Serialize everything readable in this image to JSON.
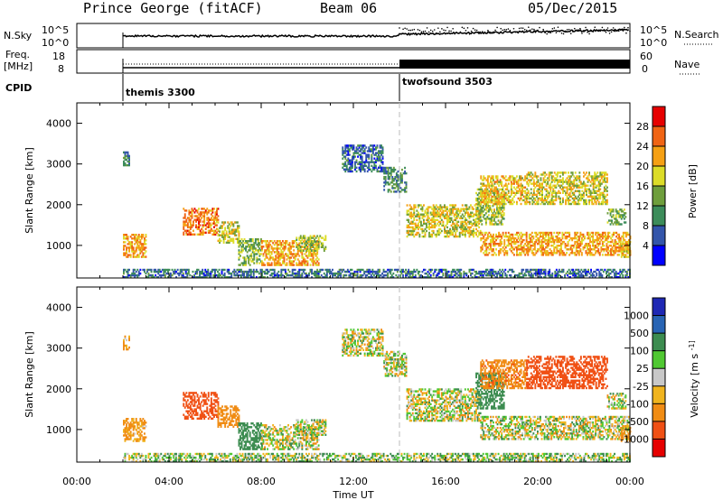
{
  "header": {
    "station": "Prince George (fitACF)",
    "beam": "Beam 06",
    "date": "05/Dec/2015"
  },
  "status_panels": {
    "nsky_label": "N.Sky",
    "nsearch_label": "N.Search",
    "nsky_ticks": [
      "10^5",
      "10^0"
    ],
    "nsky_right_ticks": [
      "10^5",
      "10^0"
    ],
    "freq_label": "Freq.",
    "freq_unit": "[MHz]",
    "freq_ticks": [
      "18",
      "8"
    ],
    "nave_label": "Nave",
    "nave_ticks": [
      "60",
      "0"
    ],
    "cpid_label": "CPID",
    "cpid_modes": [
      {
        "name": "themis 3300",
        "start_hour": 2.0
      },
      {
        "name": "twofsound 3503",
        "start_hour": 14.0
      }
    ]
  },
  "chart_data": [
    {
      "type": "heatmap",
      "quantity": "Power",
      "colorbar_label": "Power [dB]",
      "colorbar_ticks": [
        "28",
        "24",
        "20",
        "16",
        "12",
        "8",
        "4"
      ],
      "colorbar_colors": [
        "#0000ff",
        "#3355aa",
        "#3c8c5a",
        "#6e9e3c",
        "#dcdc28",
        "#f5a014",
        "#f06414",
        "#e60000"
      ],
      "xlabel": "Time UT",
      "ylabel": "Slant Range [km]",
      "xlim": [
        0,
        24
      ],
      "ylim": [
        200,
        4500
      ],
      "y_ticks": [
        1000,
        2000,
        3000,
        4000
      ],
      "x_tick_labels": [
        "00:00",
        "04:00",
        "08:00",
        "12:00",
        "16:00",
        "20:00",
        "00:00"
      ],
      "x_ticks": [
        0,
        4,
        8,
        12,
        16,
        20,
        24
      ],
      "mode_change_hour": 14.0
    },
    {
      "type": "heatmap",
      "quantity": "Velocity",
      "colorbar_label": "Velocity [m s^-1]",
      "colorbar_ticks": [
        "1000",
        "500",
        "100",
        "25",
        "-25",
        "-100",
        "-500",
        "-1000"
      ],
      "colorbar_colors": [
        "#1e28b4",
        "#2864b4",
        "#3c8c50",
        "#50c832",
        "#c8c8c8",
        "#f0b41e",
        "#f08c14",
        "#f05014",
        "#e60000"
      ],
      "xlabel": "Time UT",
      "ylabel": "Slant Range [km]",
      "xlim": [
        0,
        24
      ],
      "ylim": [
        200,
        4500
      ],
      "y_ticks": [
        1000,
        2000,
        3000,
        4000
      ],
      "x_tick_labels": [
        "00:00",
        "04:00",
        "08:00",
        "12:00",
        "16:00",
        "20:00",
        "00:00"
      ],
      "x_ticks": [
        0,
        4,
        8,
        12,
        16,
        20,
        24
      ],
      "mode_change_hour": 14.0
    }
  ],
  "echo_regions": [
    {
      "t0": 2.0,
      "t1": 3.0,
      "r0": 700,
      "r1": 1250,
      "power": 22,
      "velocity": -150
    },
    {
      "t0": 2.0,
      "t1": 2.3,
      "r0": 2950,
      "r1": 3300,
      "power": 10,
      "velocity": -150
    },
    {
      "t0": 4.6,
      "t1": 6.1,
      "r0": 1250,
      "r1": 1900,
      "power": 24,
      "velocity": -700
    },
    {
      "t0": 6.1,
      "t1": 7.0,
      "r0": 1050,
      "r1": 1550,
      "power": 18,
      "velocity": -300
    },
    {
      "t0": 7.0,
      "t1": 8.0,
      "r0": 500,
      "r1": 1150,
      "power": 14,
      "velocity": 300
    },
    {
      "t0": 8.0,
      "t1": 10.5,
      "r0": 500,
      "r1": 1100,
      "power": 22,
      "velocity": 0
    },
    {
      "t0": 9.5,
      "t1": 10.8,
      "r0": 850,
      "r1": 1250,
      "power": 16,
      "velocity": 0
    },
    {
      "t0": 11.5,
      "t1": 13.3,
      "r0": 2800,
      "r1": 3450,
      "power": 8,
      "velocity": 0
    },
    {
      "t0": 13.3,
      "t1": 14.3,
      "r0": 2300,
      "r1": 2900,
      "power": 10,
      "velocity": 0
    },
    {
      "t0": 14.3,
      "t1": 17.5,
      "r0": 1200,
      "r1": 2000,
      "power": 18,
      "velocity": 0
    },
    {
      "t0": 17.5,
      "t1": 24.0,
      "r0": 750,
      "r1": 1300,
      "power": 22,
      "velocity": 0
    },
    {
      "t0": 17.3,
      "t1": 18.5,
      "r0": 1500,
      "r1": 2400,
      "power": 16,
      "velocity": 300
    },
    {
      "t0": 17.5,
      "t1": 19.5,
      "r0": 2000,
      "r1": 2700,
      "power": 20,
      "velocity": -400
    },
    {
      "t0": 19.5,
      "t1": 23.0,
      "r0": 2000,
      "r1": 2800,
      "power": 18,
      "velocity": -800
    },
    {
      "t0": 23.0,
      "t1": 23.8,
      "r0": 1500,
      "r1": 1900,
      "power": 14,
      "velocity": 0
    },
    {
      "t0": 23.6,
      "t1": 24.0,
      "r0": 700,
      "r1": 1100,
      "power": 20,
      "velocity": -200
    },
    {
      "t0": 2.0,
      "t1": 24.0,
      "r0": 200,
      "r1": 420,
      "power": 8,
      "velocity": 50
    }
  ]
}
